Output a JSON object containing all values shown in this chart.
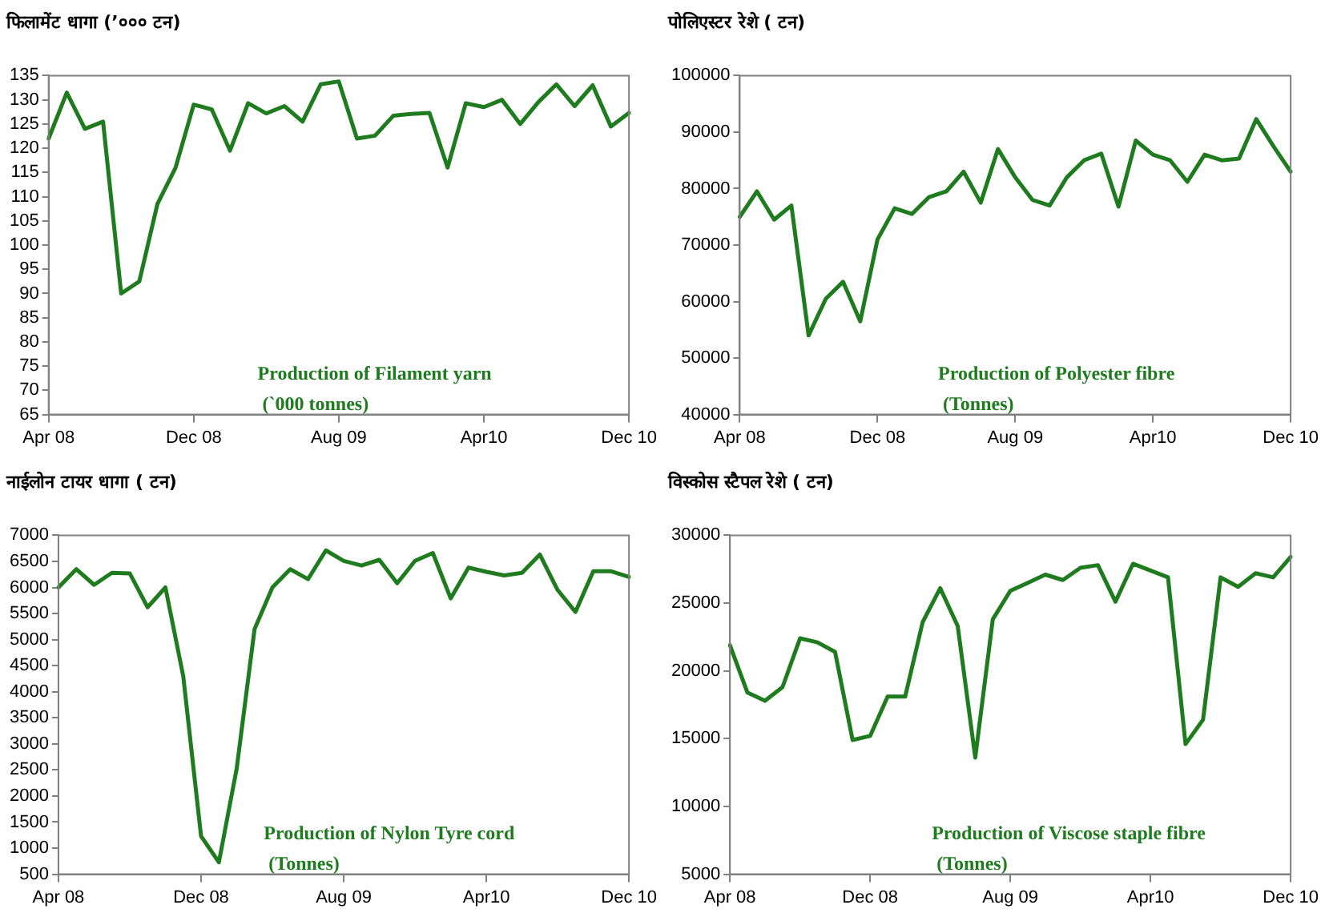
{
  "chart_data": [
    {
      "type": "line",
      "title": "फिलामेंट धागा (’००० टन)",
      "annotations": [
        "Production of Filament yarn",
        "(`000 tonnes)"
      ],
      "categories": [
        "Apr 08",
        null,
        null,
        null,
        null,
        null,
        null,
        null,
        "Dec 08",
        null,
        null,
        null,
        null,
        null,
        null,
        null,
        "Aug 09",
        null,
        null,
        null,
        null,
        null,
        null,
        null,
        "Apr10",
        null,
        null,
        null,
        null,
        null,
        null,
        null,
        "Dec 10"
      ],
      "ylim": [
        65,
        135
      ],
      "yticks": [
        65,
        70,
        75,
        80,
        85,
        90,
        95,
        100,
        105,
        110,
        115,
        120,
        125,
        130,
        135
      ],
      "grid": false,
      "legend": false,
      "marker": "none",
      "line_style": "solid",
      "series": [
        {
          "color": "#1e7b1e",
          "values": [
            122,
            131.5,
            124,
            125.5,
            90,
            92.5,
            108.5,
            116,
            129,
            128,
            119.5,
            129.3,
            127.2,
            128.7,
            125.5,
            133.2,
            133.8,
            122,
            122.6,
            126.7,
            127.1,
            127.3,
            116,
            129.3,
            128.5,
            130,
            125,
            129.5,
            133.2,
            128.7,
            133,
            124.5,
            127.3
          ]
        }
      ]
    },
    {
      "type": "line",
      "title": "पोलिएस्टर रेशे ( टन)",
      "annotations": [
        "Production of Polyester fibre",
        "(Tonnes)"
      ],
      "categories": [
        "Apr 08",
        null,
        null,
        null,
        null,
        null,
        null,
        null,
        "Dec 08",
        null,
        null,
        null,
        null,
        null,
        null,
        null,
        "Aug 09",
        null,
        null,
        null,
        null,
        null,
        null,
        null,
        "Apr10",
        null,
        null,
        null,
        null,
        null,
        null,
        null,
        "Dec 10"
      ],
      "ylim": [
        40000,
        100000
      ],
      "yticks": [
        40000,
        50000,
        60000,
        70000,
        80000,
        90000,
        100000
      ],
      "grid": false,
      "legend": false,
      "marker": "none",
      "line_style": "solid",
      "series": [
        {
          "color": "#1e7b1e",
          "values": [
            75000,
            79500,
            74500,
            77000,
            54000,
            60500,
            63500,
            56500,
            71000,
            76500,
            75500,
            78500,
            79500,
            83000,
            77500,
            87000,
            82000,
            78000,
            77000,
            82000,
            85000,
            86200,
            76800,
            88500,
            86000,
            85000,
            81200,
            86000,
            85000,
            85300,
            92300,
            87500,
            83000
          ]
        }
      ]
    },
    {
      "type": "line",
      "title": "नाईलोन टायर धागा ( टन)",
      "annotations": [
        "Production of Nylon Tyre cord",
        "(Tonnes)"
      ],
      "categories": [
        "Apr 08",
        null,
        null,
        null,
        null,
        null,
        null,
        null,
        "Dec 08",
        null,
        null,
        null,
        null,
        null,
        null,
        null,
        "Aug 09",
        null,
        null,
        null,
        null,
        null,
        null,
        null,
        "Apr10",
        null,
        null,
        null,
        null,
        null,
        null,
        null,
        "Dec 10"
      ],
      "ylim": [
        500,
        7000
      ],
      "yticks": [
        500,
        1000,
        1500,
        2000,
        2500,
        3000,
        3500,
        4000,
        4500,
        5000,
        5500,
        6000,
        6500,
        7000
      ],
      "grid": false,
      "legend": false,
      "marker": "none",
      "line_style": "solid",
      "series": [
        {
          "color": "#1e7b1e",
          "values": [
            6000,
            6350,
            6050,
            6280,
            6270,
            5620,
            6000,
            4300,
            1230,
            730,
            2530,
            5200,
            6000,
            6350,
            6160,
            6710,
            6510,
            6420,
            6530,
            6080,
            6510,
            6660,
            5790,
            6380,
            6300,
            6230,
            6280,
            6630,
            5950,
            5530,
            6310,
            6310,
            6200
          ]
        }
      ]
    },
    {
      "type": "line",
      "title": "विस्कोस स्टैपल रेशे ( टन)",
      "annotations": [
        "Production of Viscose staple fibre",
        "(Tonnes)"
      ],
      "categories": [
        "Apr 08",
        null,
        null,
        null,
        null,
        null,
        null,
        null,
        "Dec 08",
        null,
        null,
        null,
        null,
        null,
        null,
        null,
        "Aug 09",
        null,
        null,
        null,
        null,
        null,
        null,
        null,
        "Apr10",
        null,
        null,
        null,
        null,
        null,
        null,
        null,
        "Dec 10"
      ],
      "ylim": [
        5000,
        30000
      ],
      "yticks": [
        5000,
        10000,
        15000,
        20000,
        25000,
        30000
      ],
      "grid": false,
      "legend": false,
      "marker": "none",
      "line_style": "solid",
      "series": [
        {
          "color": "#1e7b1e",
          "values": [
            21900,
            18400,
            17800,
            18800,
            22400,
            22100,
            21400,
            14900,
            15200,
            18100,
            18100,
            23600,
            26100,
            23300,
            13600,
            23800,
            25900,
            26500,
            27100,
            26700,
            27600,
            27800,
            25100,
            27900,
            27400,
            26900,
            14600,
            16400,
            26900,
            26200,
            27200,
            26900,
            28400
          ]
        }
      ]
    }
  ]
}
